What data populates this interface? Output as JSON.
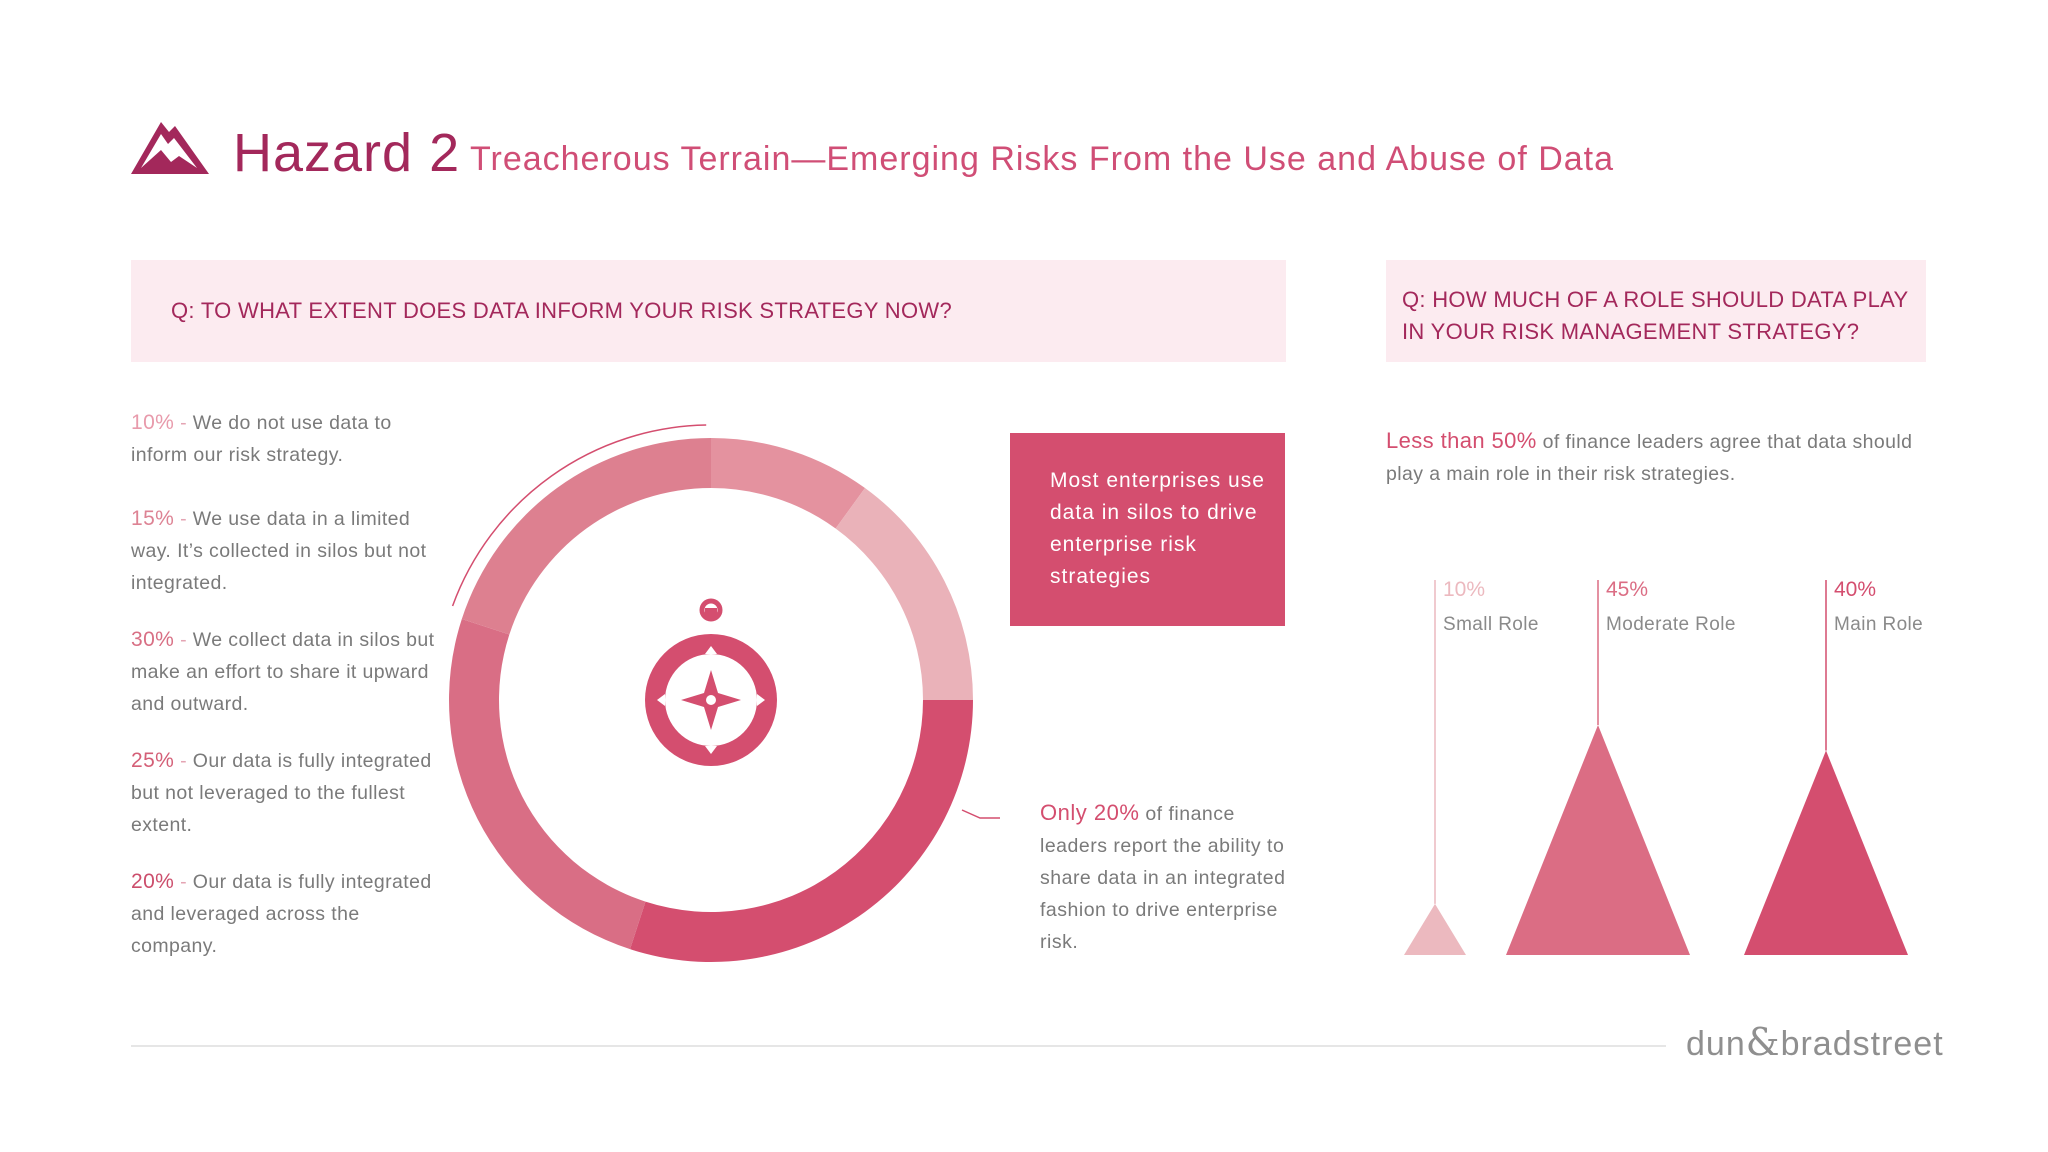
{
  "header": {
    "title": "Hazard 2",
    "subtitle": "Treacherous Terrain—Emerging Risks From the Use and Abuse of Data",
    "icon": "mountain-icon"
  },
  "left_panel": {
    "question": "Q: TO WHAT EXTENT DOES DATA INFORM YOUR RISK STRATEGY NOW?",
    "items": [
      {
        "pct": "10%",
        "text": "We do not use data to inform our risk strategy."
      },
      {
        "pct": "15%",
        "text": "We use data in a limited way. It’s collected in silos but not integrated."
      },
      {
        "pct": "30%",
        "text": "We collect data in silos but make an effort to share it upward and outward."
      },
      {
        "pct": "25%",
        "text": "Our data is fully integrated but not leveraged to the fullest extent."
      },
      {
        "pct": "20%",
        "text": "Our data is fully integrated and leveraged across the company."
      }
    ],
    "callout": "Most enterprises use data in silos to drive enterprise risk strategies",
    "note": {
      "highlight": "Only 20%",
      "text": "of finance leaders report the ability to share data in an integrated fashion to drive enterprise risk."
    },
    "center_icon": "compass-icon"
  },
  "right_panel": {
    "question": "Q: HOW MUCH OF A ROLE SHOULD DATA PLAY IN YOUR RISK MANAGEMENT STRATEGY?",
    "lead": {
      "highlight": "Less than 50%",
      "text": "of finance leaders agree that data should play a main role in their risk strategies."
    }
  },
  "chart_data": [
    {
      "type": "pie",
      "categories": [
        "10%",
        "15%",
        "30%",
        "25%",
        "20%"
      ],
      "values": [
        10,
        15,
        30,
        25,
        20
      ],
      "colors": [
        "#e4929f",
        "#eab2b9",
        "#d44e6f",
        "#d96e85",
        "#dd8090"
      ]
    },
    {
      "type": "bar",
      "categories": [
        "Small Role",
        "Moderate Role",
        "Main Role"
      ],
      "values": [
        10,
        45,
        40
      ],
      "labels": [
        "10%",
        "45%",
        "40%"
      ],
      "colors": [
        "#ecb9bf",
        "#db6d84",
        "#d44e6f"
      ]
    }
  ],
  "footer": {
    "brand_left": "dun",
    "brand_amp": "&",
    "brand_right": "bradstreet"
  },
  "colors": {
    "accent": "#a3285b",
    "pink": "#d44e6f",
    "box_bg": "#fcebf0"
  }
}
